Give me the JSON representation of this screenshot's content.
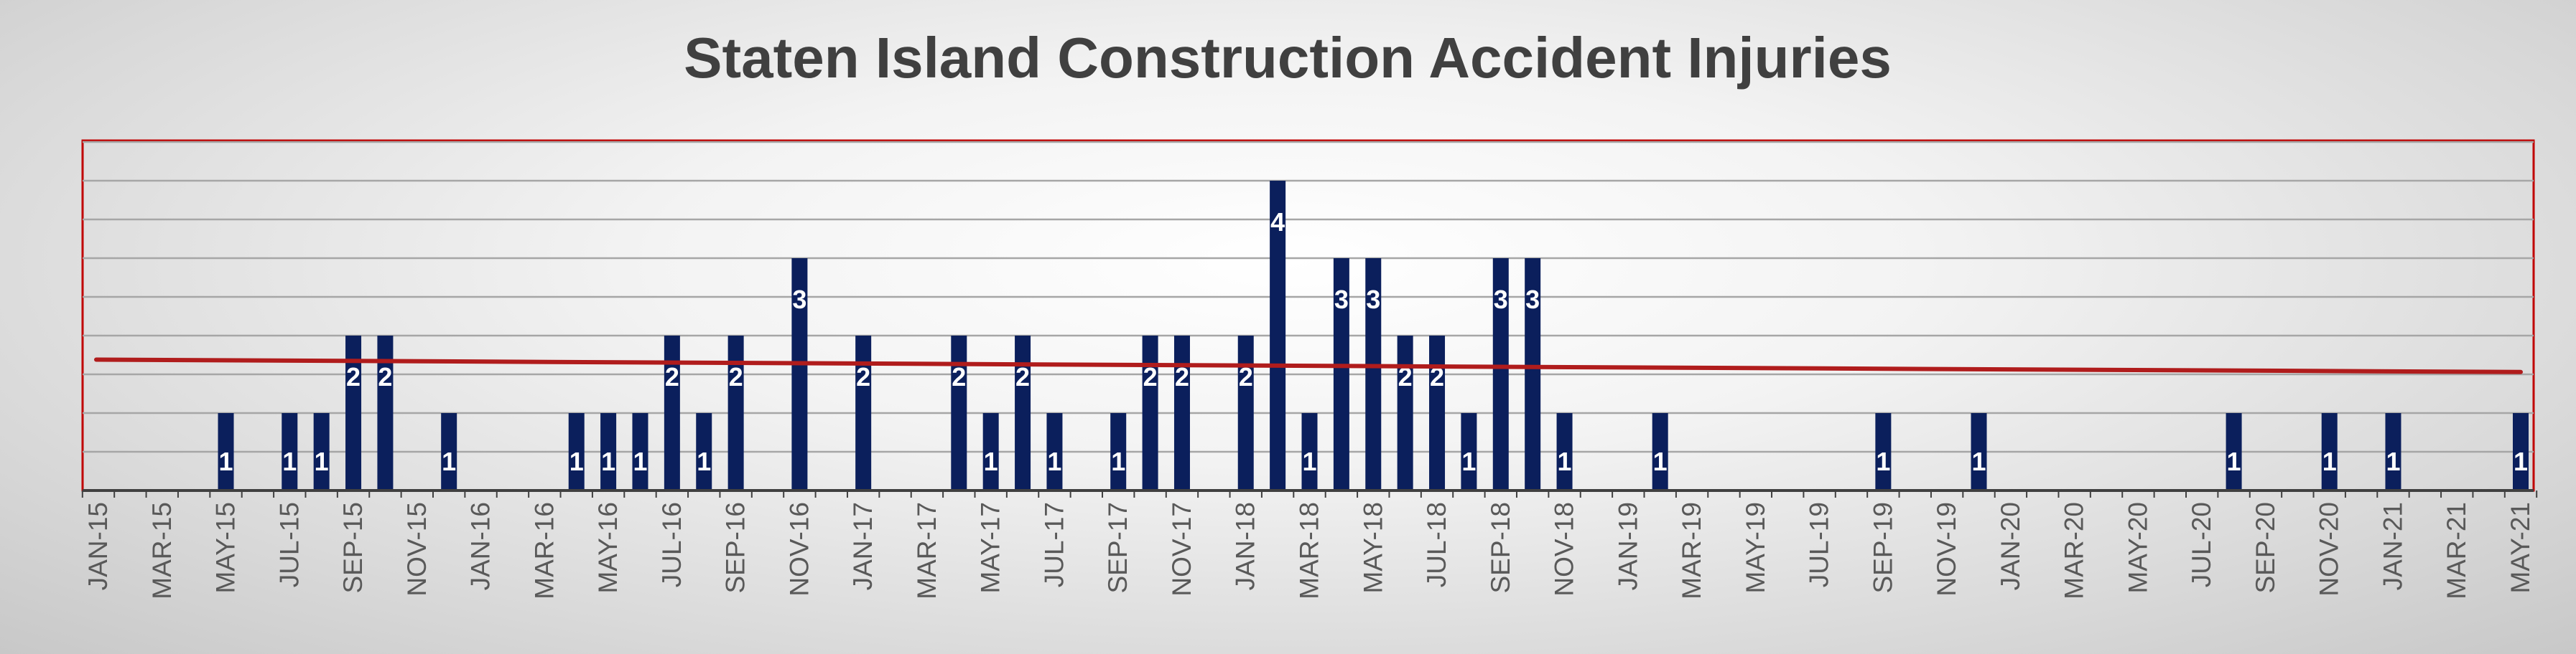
{
  "chart_data": {
    "type": "bar",
    "title": "Staten Island Construction Accident Injuries",
    "xlabel": "",
    "ylabel": "",
    "ylim": [
      0,
      4
    ],
    "grid": true,
    "legend": "none",
    "trendline": {
      "type": "linear",
      "start_value": 1.69,
      "end_value": 1.53
    },
    "categories": [
      "JAN-15",
      "FEB-15",
      "MAR-15",
      "APR-15",
      "MAY-15",
      "JUN-15",
      "JUL-15",
      "AUG-15",
      "SEP-15",
      "OCT-15",
      "NOV-15",
      "DEC-15",
      "JAN-16",
      "FEB-16",
      "MAR-16",
      "APR-16",
      "MAY-16",
      "JUN-16",
      "JUL-16",
      "AUG-16",
      "SEP-16",
      "OCT-16",
      "NOV-16",
      "DEC-16",
      "JAN-17",
      "FEB-17",
      "MAR-17",
      "APR-17",
      "MAY-17",
      "JUN-17",
      "JUL-17",
      "AUG-17",
      "SEP-17",
      "OCT-17",
      "NOV-17",
      "DEC-17",
      "JAN-18",
      "FEB-18",
      "MAR-18",
      "APR-18",
      "MAY-18",
      "JUN-18",
      "JUL-18",
      "AUG-18",
      "SEP-18",
      "OCT-18",
      "NOV-18",
      "DEC-18",
      "JAN-19",
      "FEB-19",
      "MAR-19",
      "APR-19",
      "MAY-19",
      "JUN-19",
      "JUL-19",
      "AUG-19",
      "SEP-19",
      "OCT-19",
      "NOV-19",
      "DEC-19",
      "JAN-20",
      "FEB-20",
      "MAR-20",
      "APR-20",
      "MAY-20",
      "JUN-20",
      "JUL-20",
      "AUG-20",
      "SEP-20",
      "OCT-20",
      "NOV-20",
      "DEC-20",
      "JAN-21",
      "FEB-21",
      "MAR-21",
      "APR-21",
      "MAY-21"
    ],
    "values": [
      0,
      0,
      0,
      0,
      1,
      0,
      1,
      1,
      2,
      2,
      0,
      1,
      0,
      0,
      0,
      1,
      1,
      1,
      2,
      1,
      2,
      0,
      3,
      0,
      2,
      0,
      0,
      2,
      1,
      2,
      1,
      0,
      1,
      2,
      2,
      0,
      2,
      4,
      1,
      3,
      3,
      2,
      2,
      1,
      3,
      3,
      1,
      0,
      0,
      1,
      0,
      0,
      0,
      0,
      0,
      0,
      1,
      0,
      0,
      1,
      0,
      0,
      0,
      0,
      0,
      0,
      0,
      1,
      0,
      0,
      1,
      0,
      1,
      0,
      0,
      0,
      1
    ],
    "visible_tick_labels": [
      "JAN-15",
      "MAR-15",
      "MAY-15",
      "JUL-15",
      "SEP-15",
      "NOV-15",
      "JAN-16",
      "MAR-16",
      "MAY-16",
      "JUL-16",
      "SEP-16",
      "NOV-16",
      "JAN-17",
      "MAR-17",
      "MAY-17",
      "JUL-17",
      "SEP-17",
      "NOV-17",
      "JAN-18",
      "MAR-18",
      "MAY-18",
      "JUL-18",
      "SEP-18",
      "NOV-18",
      "JAN-19",
      "MAR-19",
      "MAY-19",
      "JUL-19",
      "SEP-19",
      "NOV-19",
      "JAN-20",
      "MAR-20",
      "MAY-20",
      "JUL-20",
      "SEP-20",
      "NOV-20",
      "JAN-21",
      "MAR-21",
      "MAY-21"
    ]
  },
  "colors": {
    "bar": "#0b1f5c",
    "trendline": "#b01c1c",
    "plot_border": "#c00000",
    "gridline": "#a6a6a6",
    "axis": "#404040",
    "title": "#404040",
    "data_label": "#ffffff"
  }
}
